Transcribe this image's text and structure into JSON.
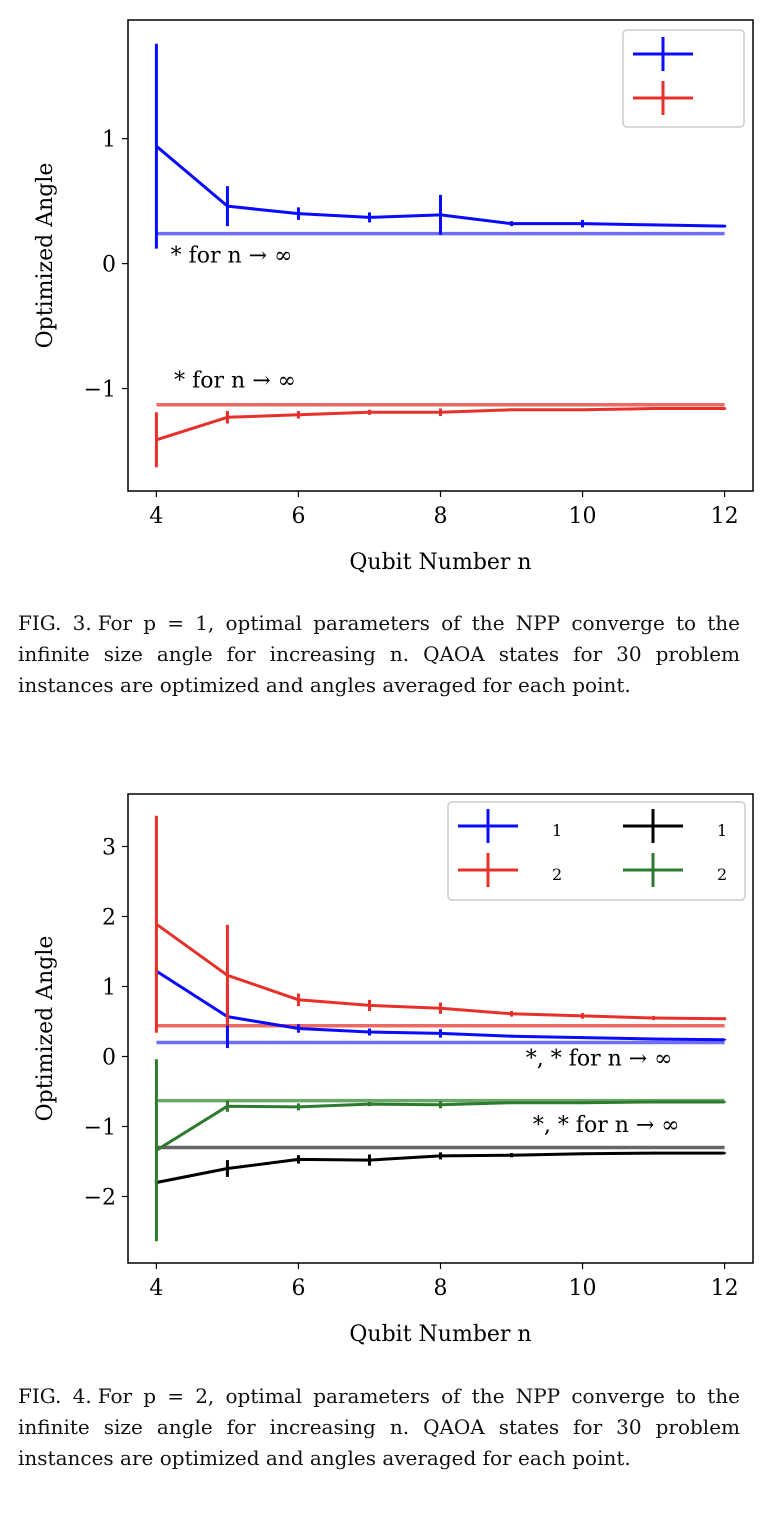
{
  "figures": [
    {
      "caption_label": "FIG. 3.",
      "caption_text": "For p = 1, optimal parameters of the NPP converge to the infinite size angle for increasing n. QAOA states for 30 problem instances are optimized and angles averaged for each point.",
      "chart_data": {
        "type": "line",
        "xlabel": "Qubit Number n",
        "ylabel": "Optimized Angle",
        "xlim": [
          3.6,
          12.4
        ],
        "ylim": [
          -1.82,
          1.95
        ],
        "xticks": [
          "4",
          "6",
          "8",
          "10",
          "12"
        ],
        "yticks": [
          "−1",
          "0",
          "1"
        ],
        "x": [
          4,
          5,
          6,
          7,
          8,
          9,
          10,
          11,
          12
        ],
        "series": [
          {
            "color": "#0a0aff",
            "values": [
              0.94,
              0.46,
              0.4,
              0.37,
              0.39,
              0.32,
              0.32,
              0.31,
              0.3
            ],
            "errors": [
              0.82,
              0.16,
              0.05,
              0.04,
              0.16,
              0.02,
              0.03,
              0.01,
              0.01
            ]
          },
          {
            "color": "#e8302a",
            "values": [
              -1.41,
              -1.23,
              -1.21,
              -1.19,
              -1.19,
              -1.17,
              -1.17,
              -1.16,
              -1.16
            ],
            "errors": [
              0.22,
              0.05,
              0.03,
              0.02,
              0.03,
              0.01,
              0.01,
              0.01,
              0.01
            ]
          }
        ],
        "hlines": [
          {
            "y": 0.24,
            "color": "#6f6ff5",
            "x_range": [
              4,
              12
            ]
          },
          {
            "y": -1.13,
            "color": "#ec6a64",
            "x_range": [
              4,
              12
            ]
          }
        ],
        "annotations": [
          {
            "text": "* for n → ∞",
            "x": 4.2,
            "y": 0.01
          },
          {
            "text": "* for n → ∞",
            "x": 4.25,
            "y": -0.99
          }
        ],
        "legend": {
          "position": "top-right",
          "columns": 1
        }
      }
    },
    {
      "caption_label": "FIG. 4.",
      "caption_text": "For p = 2, optimal parameters of the NPP converge to the infinite size angle for increasing n. QAOA states for 30 problem instances are optimized and angles averaged for each point.",
      "chart_data": {
        "type": "line",
        "xlabel": "Qubit Number n",
        "ylabel": "Optimized Angle",
        "xlim": [
          3.6,
          12.4
        ],
        "ylim": [
          -2.95,
          3.75
        ],
        "xticks": [
          "4",
          "6",
          "8",
          "10",
          "12"
        ],
        "yticks": [
          "−2",
          "−1",
          "0",
          "1",
          "2",
          "3"
        ],
        "x": [
          4,
          5,
          6,
          7,
          8,
          9,
          10,
          11,
          12
        ],
        "series": [
          {
            "color": "#0a0aff",
            "values": [
              1.22,
              0.57,
              0.4,
              0.35,
              0.33,
              0.29,
              0.27,
              0.25,
              0.24
            ],
            "errors": [
              0.05,
              0.45,
              0.06,
              0.05,
              0.06,
              0.02,
              0.02,
              0.02,
              0.01
            ]
          },
          {
            "color": "#e8302a",
            "values": [
              1.89,
              1.16,
              0.81,
              0.73,
              0.69,
              0.61,
              0.58,
              0.55,
              0.54
            ],
            "errors": [
              1.55,
              0.72,
              0.09,
              0.08,
              0.08,
              0.04,
              0.04,
              0.03,
              0.02
            ]
          },
          {
            "color": "#000000",
            "values": [
              -1.8,
              -1.6,
              -1.47,
              -1.48,
              -1.42,
              -1.41,
              -1.39,
              -1.38,
              -1.38
            ],
            "errors": [
              0.03,
              0.12,
              0.06,
              0.08,
              0.05,
              0.03,
              0.02,
              0.02,
              0.01
            ]
          },
          {
            "color": "#2e7a2e",
            "values": [
              -1.34,
              -0.71,
              -0.72,
              -0.68,
              -0.69,
              -0.66,
              -0.66,
              -0.65,
              -0.65
            ],
            "errors": [
              1.3,
              0.08,
              0.05,
              0.03,
              0.05,
              0.02,
              0.02,
              0.02,
              0.01
            ]
          }
        ],
        "hlines": [
          {
            "y": 0.2,
            "color": "#6f6ff5",
            "x_range": [
              4,
              12
            ]
          },
          {
            "y": 0.44,
            "color": "#ec6a64",
            "x_range": [
              4,
              12
            ]
          },
          {
            "y": -1.3,
            "color": "#666666",
            "x_range": [
              4,
              12
            ]
          },
          {
            "y": -0.63,
            "color": "#6aa86a",
            "x_range": [
              4,
              12
            ]
          }
        ],
        "annotations": [
          {
            "text": "*,  * for n → ∞",
            "x": 9.2,
            "y": -0.13
          },
          {
            "text": "*,  * for n → ∞",
            "x": 9.3,
            "y": -1.08
          }
        ],
        "legend": {
          "position": "top-right",
          "columns": 2,
          "subscripts": [
            "1",
            "2",
            "1",
            "2"
          ]
        }
      }
    }
  ]
}
